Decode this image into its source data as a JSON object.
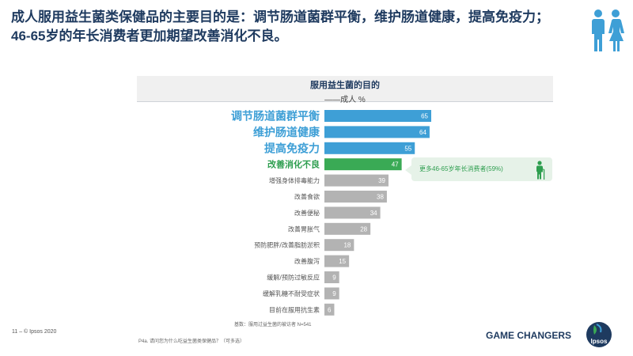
{
  "headline": {
    "line1": "成人服用益生菌类保健品的主要目的是：调节肠道菌群平衡，维护肠道健康，提高免疫力；",
    "line2": "46-65岁的年长消费者更加期望改善消化不良。"
  },
  "chart_header": {
    "title": "服用益生菌的目的",
    "subtitle": "——成人 %"
  },
  "chart_data": {
    "type": "bar",
    "orientation": "horizontal",
    "title": "服用益生菌的目的",
    "subtitle": "——成人 %",
    "categories": [
      "调节肠道菌群平衡",
      "维护肠道健康",
      "提高免疫力",
      "改善消化不良",
      "增强身体排毒能力",
      "改善食欲",
      "改善便秘",
      "改善胃胀气",
      "预防肥胖/改善脂肪淤积",
      "改善腹泻",
      "缓解/预防过敏反应",
      "缓解乳糖不耐受症状",
      "目前在服用抗生素"
    ],
    "values": [
      65,
      64,
      55,
      47,
      39,
      38,
      34,
      28,
      18,
      15,
      9,
      9,
      6
    ],
    "colors": [
      "#3e9fd6",
      "#3e9fd6",
      "#3e9fd6",
      "#3aaa55",
      "#b3b3b3",
      "#b3b3b3",
      "#b3b3b3",
      "#b3b3b3",
      "#b3b3b3",
      "#b3b3b3",
      "#b3b3b3",
      "#b3b3b3",
      "#b3b3b3"
    ],
    "label_colors": [
      "#3e9fd6",
      "#3e9fd6",
      "#3e9fd6",
      "#2e9e4f",
      "#555555",
      "#555555",
      "#555555",
      "#555555",
      "#555555",
      "#555555",
      "#555555",
      "#555555",
      "#555555"
    ],
    "emphasis": [
      true,
      true,
      true,
      true,
      false,
      false,
      false,
      false,
      false,
      false,
      false,
      false,
      false
    ],
    "xlim": [
      0,
      65
    ],
    "grid": false,
    "legend": "none"
  },
  "callout": {
    "text": "更多46-65岁年长消费者(59%)"
  },
  "notes": {
    "base": "基数：服用过益生菌的被访者 N=541",
    "question": "P4a. 请问您为什么吃益生菌类保健品？（可多选）"
  },
  "footer": {
    "page": "11 –  © Ipsos 2020",
    "tagline": "GAME CHANGERS",
    "logo": "Ipsos"
  },
  "colors": {
    "primary": "#1e3a5f",
    "accent_blue": "#3e9fd6",
    "accent_green": "#3aaa55",
    "neutral": "#b3b3b3"
  },
  "icons": [
    "people-icon",
    "elder-icon",
    "ipsos-logo"
  ]
}
